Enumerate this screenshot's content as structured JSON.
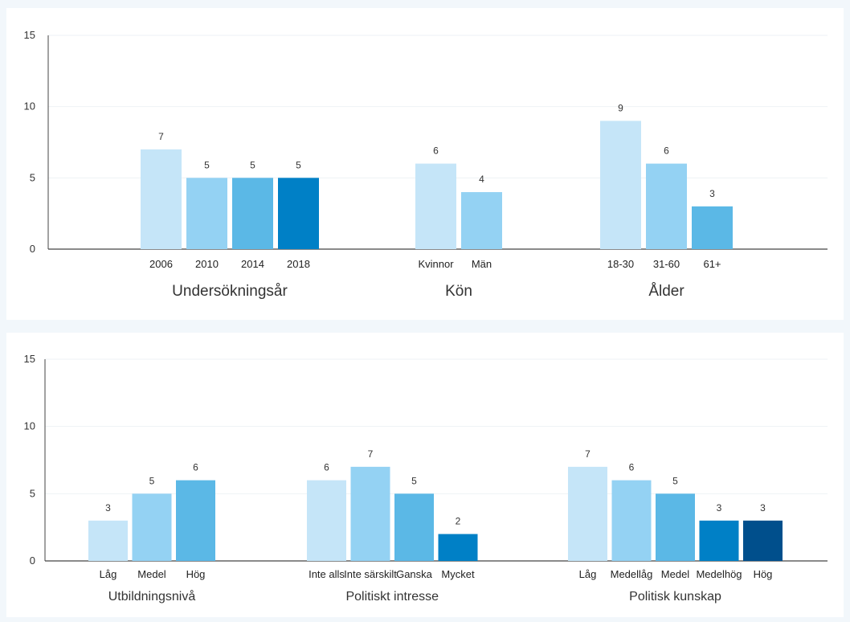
{
  "chart_data": [
    {
      "type": "bar",
      "ylim": [
        0,
        15
      ],
      "yticks": [
        0,
        5,
        10,
        15
      ],
      "grid": true,
      "groups": [
        {
          "label": "Undersökningsår",
          "categories": [
            "2006",
            "2010",
            "2014",
            "2018"
          ],
          "values": [
            7,
            5,
            5,
            5
          ],
          "colors": [
            "#c5e5f8",
            "#94d2f3",
            "#5bb8e6",
            "#0080c6"
          ]
        },
        {
          "label": "Kön",
          "categories": [
            "Kvinnor",
            "Män"
          ],
          "values": [
            6,
            4
          ],
          "colors": [
            "#c5e5f8",
            "#94d2f3"
          ]
        },
        {
          "label": "Ålder",
          "categories": [
            "18-30",
            "31-60",
            "61+"
          ],
          "values": [
            9,
            6,
            3
          ],
          "colors": [
            "#c5e5f8",
            "#94d2f3",
            "#5bb8e6"
          ]
        }
      ]
    },
    {
      "type": "bar",
      "ylim": [
        0,
        15
      ],
      "yticks": [
        0,
        5,
        10,
        15
      ],
      "grid": true,
      "groups": [
        {
          "label": "Utbildningsnivå",
          "categories": [
            "Låg",
            "Medel",
            "Hög"
          ],
          "values": [
            3,
            5,
            6
          ],
          "colors": [
            "#c5e5f8",
            "#94d2f3",
            "#5bb8e6"
          ]
        },
        {
          "label": "Politiskt intresse",
          "categories": [
            "Inte alls",
            "Inte särskilt",
            "Ganska",
            "Mycket"
          ],
          "values": [
            6,
            7,
            5,
            2
          ],
          "colors": [
            "#c5e5f8",
            "#94d2f3",
            "#5bb8e6",
            "#0080c6"
          ]
        },
        {
          "label": "Politisk kunskap",
          "categories": [
            "Låg",
            "Medellåg",
            "Medel",
            "Medelhög",
            "Hög"
          ],
          "values": [
            7,
            6,
            5,
            3,
            3
          ],
          "colors": [
            "#c5e5f8",
            "#94d2f3",
            "#5bb8e6",
            "#0080c6",
            "#004f8c"
          ]
        }
      ]
    }
  ]
}
